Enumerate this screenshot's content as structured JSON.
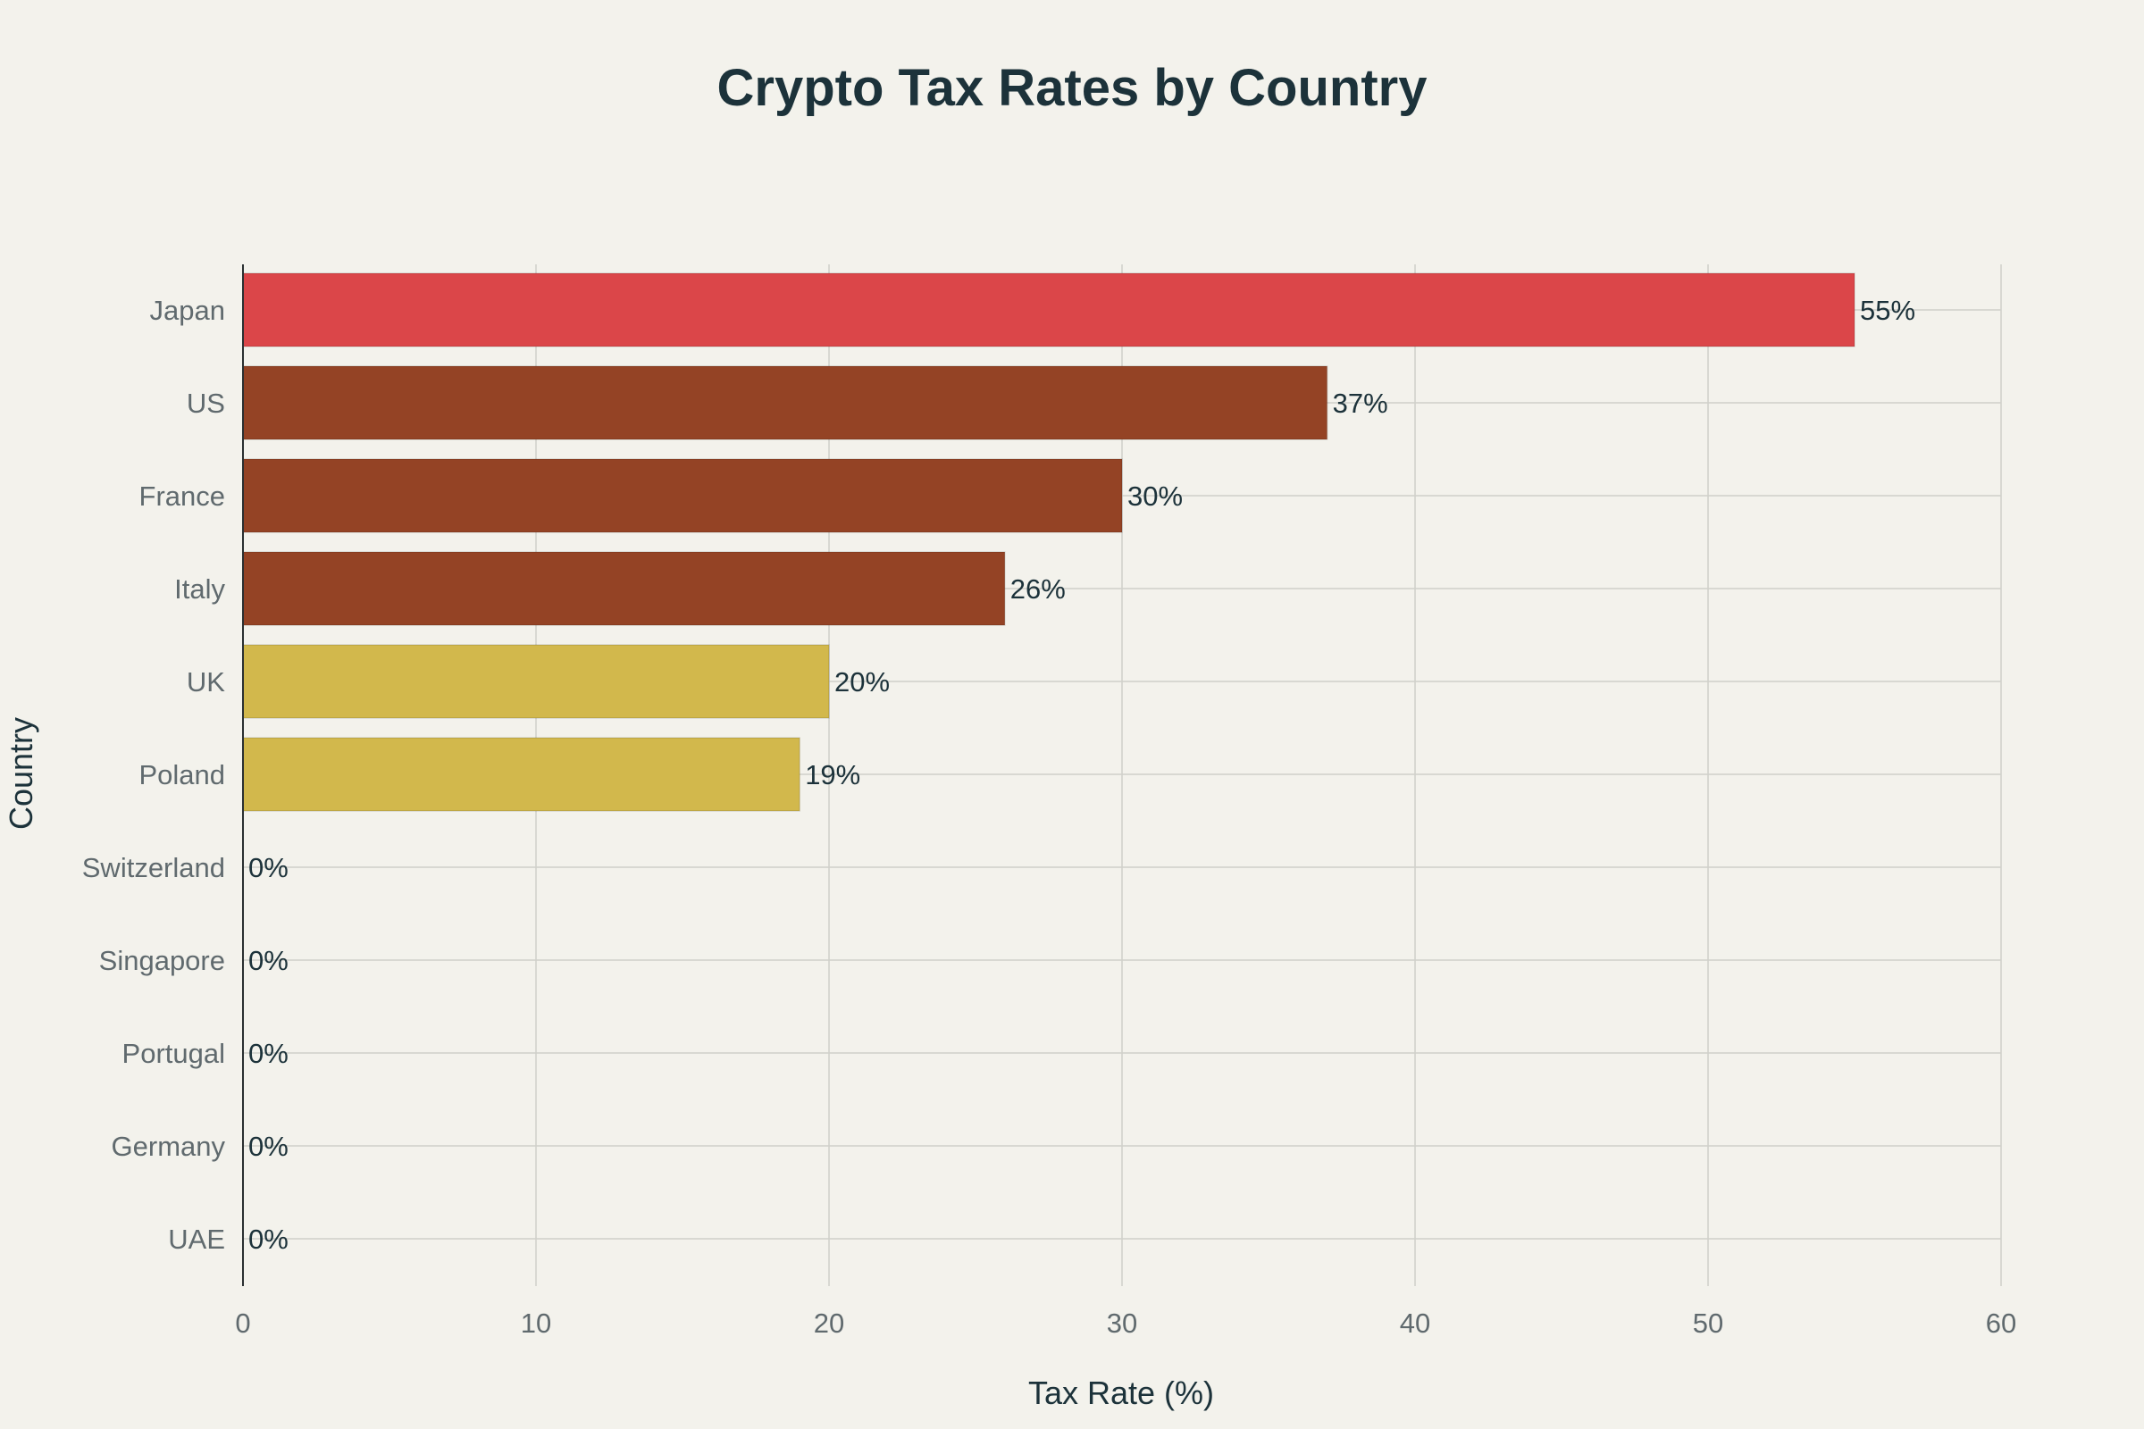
{
  "chart_data": {
    "type": "bar",
    "orientation": "horizontal",
    "title": "Crypto Tax Rates by Country",
    "xlabel": "Tax Rate (%)",
    "ylabel": "Country",
    "categories": [
      "Japan",
      "US",
      "France",
      "Italy",
      "UK",
      "Poland",
      "Switzerland",
      "Singapore",
      "Portugal",
      "Germany",
      "UAE"
    ],
    "values": [
      55,
      37,
      30,
      26,
      20,
      19,
      0,
      0,
      0,
      0,
      0
    ],
    "data_labels": [
      "55%",
      "37%",
      "30%",
      "26%",
      "20%",
      "19%",
      "0%",
      "0%",
      "0%",
      "0%",
      "0%"
    ],
    "bar_colors": [
      "#db4649",
      "#944325",
      "#944325",
      "#944325",
      "#d2b84c",
      "#d2b84c",
      "#944325",
      "#944325",
      "#944325",
      "#944325",
      "#944325"
    ],
    "xlim": [
      0,
      60
    ],
    "xticks": [
      0,
      10,
      20,
      30,
      40,
      50,
      60
    ],
    "xtick_labels": [
      "0",
      "10",
      "20",
      "30",
      "40",
      "50",
      "60"
    ],
    "grid": true,
    "legend": "none"
  },
  "colors": {
    "background": "#f3f2ec",
    "grid": "#d0d0ca",
    "text": "#1c323a",
    "tick_text": "#606a6e"
  }
}
